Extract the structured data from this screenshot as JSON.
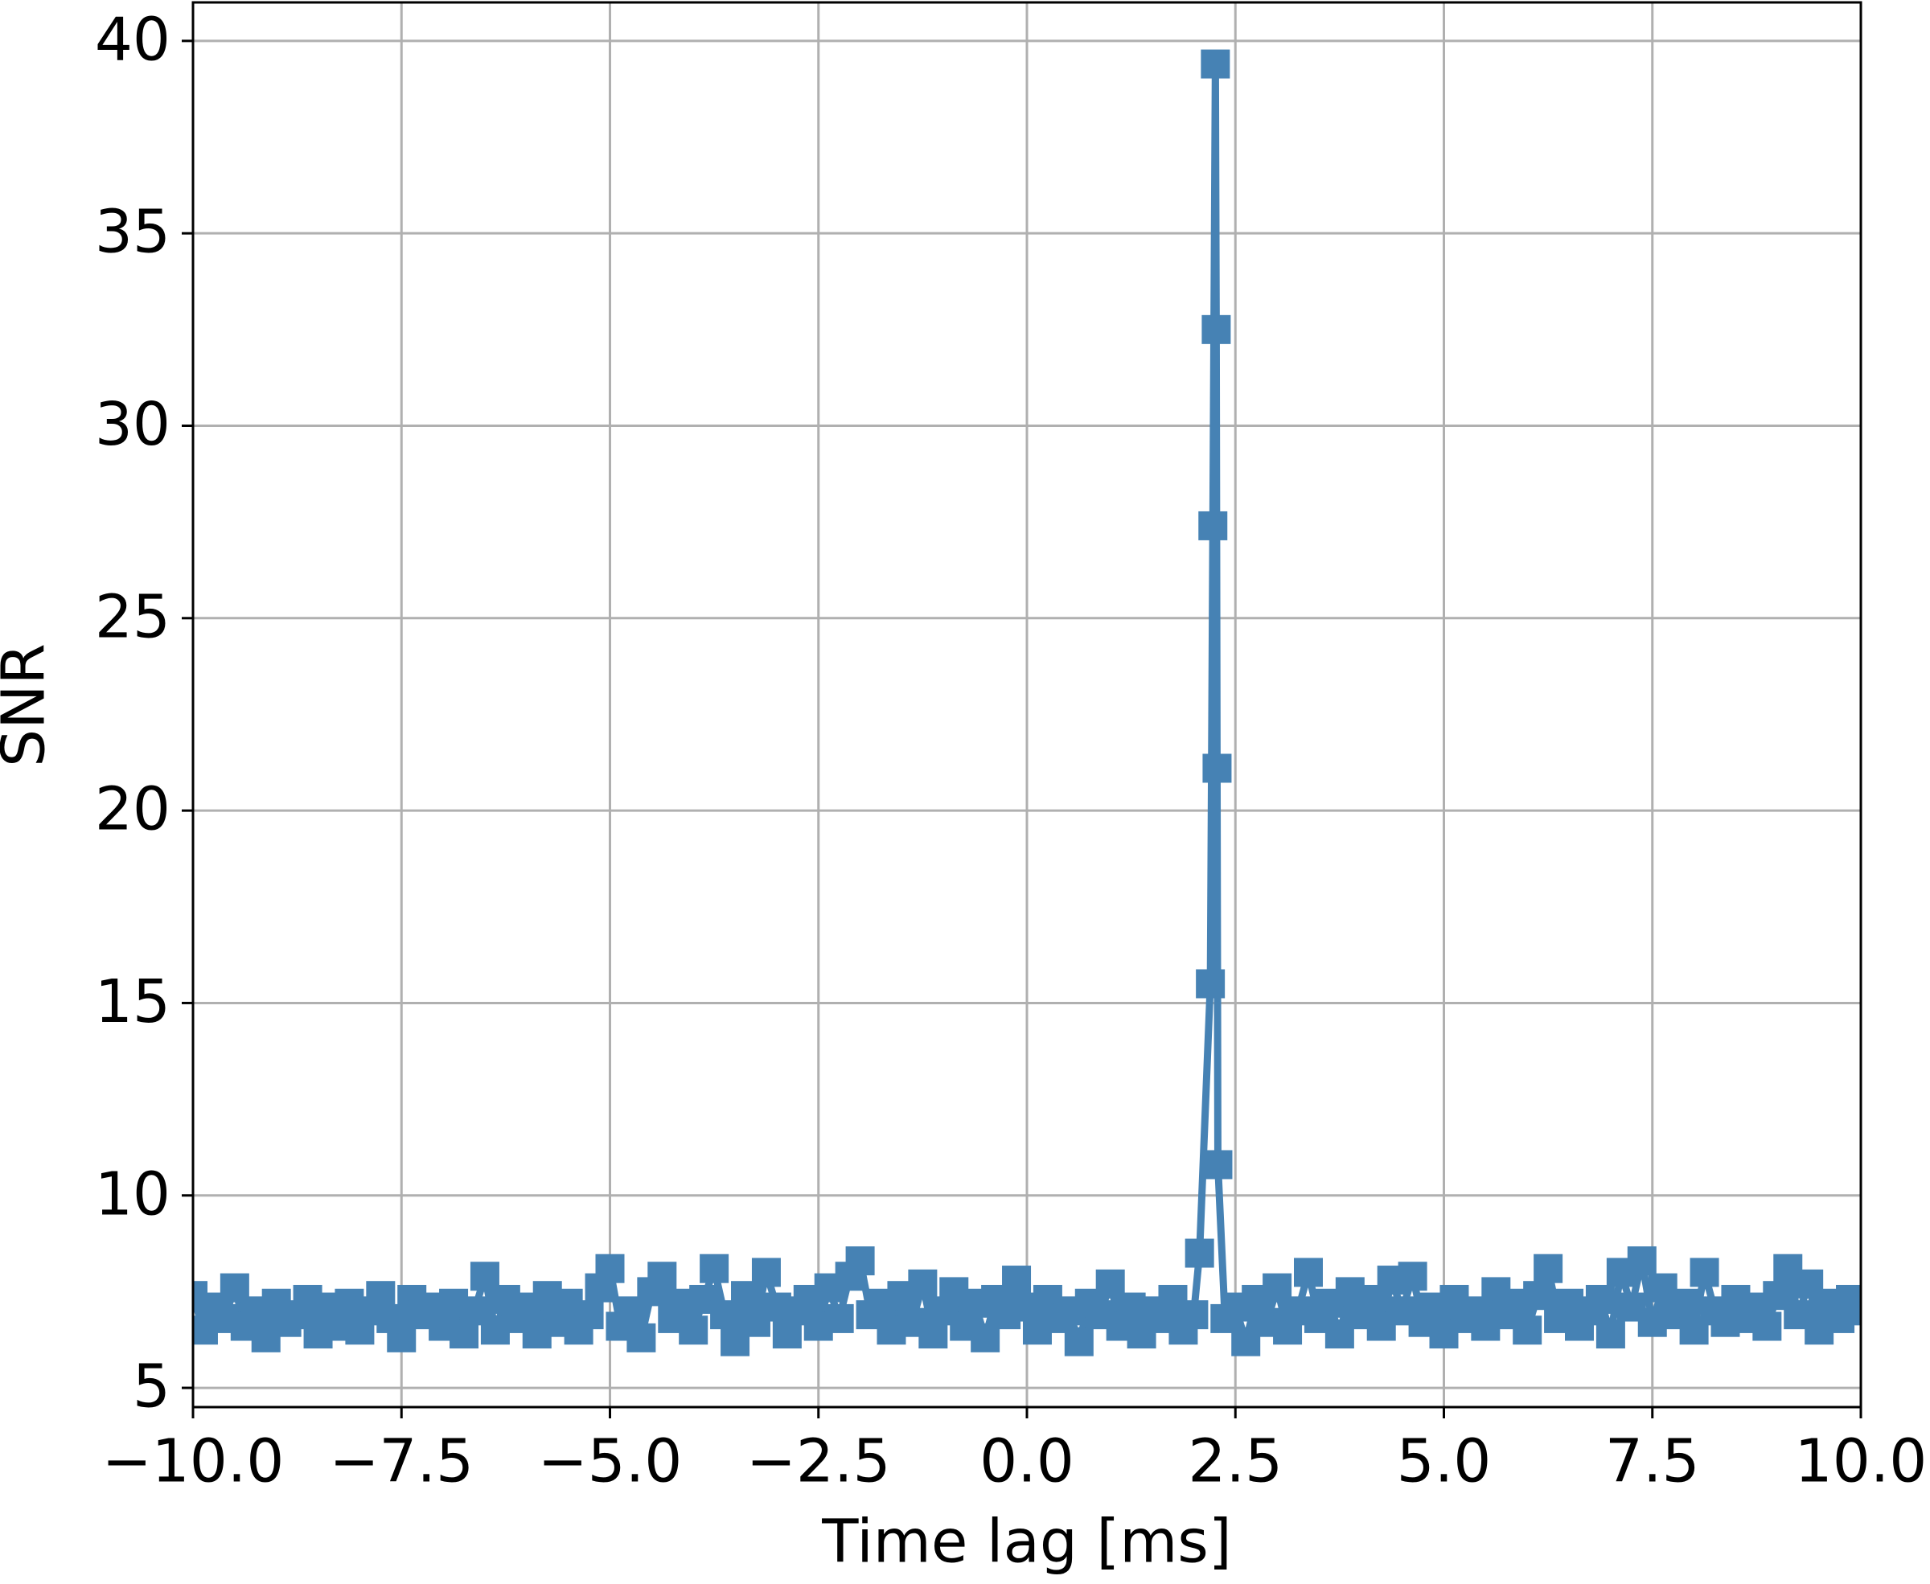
{
  "chart_data": {
    "type": "line",
    "x_label": "Time lag [ms]",
    "y_label": "SNR",
    "xlim": [
      -10,
      10
    ],
    "ylim": [
      4.5,
      41
    ],
    "xticks": [
      {
        "value": -10,
        "label": "−10.0"
      },
      {
        "value": -7.5,
        "label": "−7.5"
      },
      {
        "value": -5,
        "label": "−5.0"
      },
      {
        "value": -2.5,
        "label": "−2.5"
      },
      {
        "value": 0,
        "label": "0.0"
      },
      {
        "value": 2.5,
        "label": "2.5"
      },
      {
        "value": 5,
        "label": "5.0"
      },
      {
        "value": 7.5,
        "label": "7.5"
      },
      {
        "value": 10,
        "label": "10.0"
      }
    ],
    "yticks": [
      5,
      10,
      15,
      20,
      25,
      30,
      35,
      40
    ],
    "grid": true,
    "x": [
      -10,
      -9.875,
      -9.75,
      -9.625,
      -9.5,
      -9.375,
      -9.25,
      -9.125,
      -9,
      -8.875,
      -8.75,
      -8.625,
      -8.5,
      -8.375,
      -8.25,
      -8.125,
      -8,
      -7.875,
      -7.75,
      -7.625,
      -7.5,
      -7.375,
      -7.25,
      -7.125,
      -7,
      -6.875,
      -6.75,
      -6.625,
      -6.5,
      -6.375,
      -6.25,
      -6.125,
      -6,
      -5.875,
      -5.75,
      -5.625,
      -5.5,
      -5.375,
      -5.25,
      -5.125,
      -5,
      -4.875,
      -4.75,
      -4.625,
      -4.5,
      -4.375,
      -4.25,
      -4.125,
      -4,
      -3.875,
      -3.75,
      -3.625,
      -3.5,
      -3.375,
      -3.25,
      -3.125,
      -3,
      -2.875,
      -2.75,
      -2.625,
      -2.5,
      -2.375,
      -2.25,
      -2.125,
      -2,
      -1.875,
      -1.75,
      -1.625,
      -1.5,
      -1.375,
      -1.25,
      -1.125,
      -1,
      -0.875,
      -0.75,
      -0.625,
      -0.5,
      -0.375,
      -0.25,
      -0.125,
      0,
      0.125,
      0.25,
      0.375,
      0.5,
      0.625,
      0.75,
      0.875,
      1,
      1.125,
      1.25,
      1.375,
      1.5,
      1.625,
      1.75,
      1.875,
      2,
      2.07,
      2.2,
      2.23,
      2.26,
      2.27,
      2.28,
      2.29,
      2.375,
      2.5,
      2.625,
      2.75,
      2.875,
      3,
      3.125,
      3.25,
      3.375,
      3.5,
      3.625,
      3.75,
      3.875,
      4,
      4.125,
      4.25,
      4.375,
      4.5,
      4.625,
      4.75,
      4.875,
      5,
      5.125,
      5.25,
      5.375,
      5.5,
      5.625,
      5.75,
      5.875,
      6,
      6.125,
      6.25,
      6.375,
      6.5,
      6.625,
      6.75,
      6.875,
      7,
      7.125,
      7.25,
      7.375,
      7.5,
      7.625,
      7.75,
      7.875,
      8,
      8.125,
      8.25,
      8.375,
      8.5,
      8.625,
      8.75,
      8.875,
      9,
      9.125,
      9.25,
      9.375,
      9.5,
      9.625,
      9.75,
      9.875,
      10
    ],
    "series": [
      {
        "color": "#4682b4",
        "marker": "square",
        "values": [
          7.4,
          6.5,
          7.1,
          6.8,
          7.6,
          6.6,
          7.0,
          6.3,
          7.2,
          6.7,
          6.9,
          7.3,
          6.4,
          7.1,
          6.6,
          7.2,
          6.5,
          7.0,
          7.4,
          6.8,
          6.3,
          7.3,
          6.9,
          7.1,
          6.6,
          7.2,
          6.4,
          7.0,
          7.9,
          6.5,
          7.3,
          6.8,
          7.1,
          6.4,
          7.4,
          6.7,
          7.2,
          6.5,
          6.9,
          7.6,
          8.1,
          6.6,
          7.0,
          6.3,
          7.5,
          7.9,
          6.8,
          7.2,
          6.5,
          7.3,
          8.1,
          6.9,
          6.2,
          7.4,
          6.7,
          8.0,
          7.1,
          6.4,
          7.0,
          7.3,
          6.6,
          7.6,
          6.8,
          7.9,
          8.3,
          6.9,
          7.2,
          6.5,
          7.4,
          6.7,
          7.7,
          6.4,
          7.0,
          7.5,
          6.6,
          7.2,
          6.3,
          7.3,
          6.9,
          7.8,
          7.1,
          6.5,
          7.3,
          6.8,
          7.0,
          6.2,
          7.2,
          6.9,
          7.7,
          6.6,
          7.1,
          6.4,
          7.0,
          6.8,
          7.3,
          6.5,
          6.9,
          8.5,
          15.5,
          27.4,
          39.4,
          32.5,
          21.1,
          10.8,
          6.8,
          7.1,
          6.2,
          7.3,
          6.7,
          7.6,
          6.5,
          7.0,
          8.0,
          6.8,
          7.2,
          6.4,
          7.5,
          6.9,
          7.3,
          6.6,
          7.8,
          7.0,
          7.9,
          6.7,
          7.1,
          6.4,
          7.3,
          6.8,
          7.0,
          6.6,
          7.5,
          6.9,
          7.2,
          6.5,
          7.4,
          8.1,
          6.8,
          7.2,
          6.6,
          7.0,
          7.3,
          6.4,
          8.0,
          7.1,
          8.3,
          6.7,
          7.6,
          6.9,
          7.2,
          6.5,
          8.0,
          7.0,
          6.7,
          7.3,
          6.8,
          7.1,
          6.6,
          7.4,
          8.1,
          6.9,
          7.7,
          6.5,
          7.2,
          6.8,
          7.3,
          7.0
        ]
      }
    ]
  }
}
